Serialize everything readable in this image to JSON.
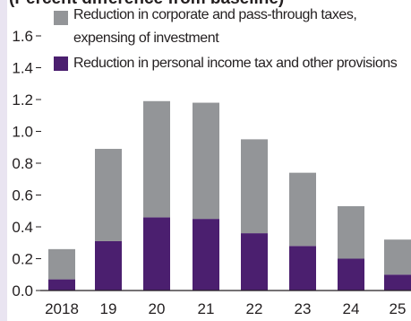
{
  "chart_data": {
    "type": "stacked_bar",
    "title": "(Percent difference from baseline)",
    "categories": [
      "2018",
      "19",
      "20",
      "21",
      "22",
      "23",
      "24",
      "25"
    ],
    "series": [
      {
        "name": "Reduction in personal income tax and other provisions",
        "color": "#4b1f6f",
        "values": [
          0.07,
          0.31,
          0.46,
          0.45,
          0.36,
          0.28,
          0.2,
          0.1
        ]
      },
      {
        "name": "Reduction in corporate and pass-through taxes, expensing of investment",
        "color": "#939598",
        "values": [
          0.19,
          0.58,
          0.73,
          0.73,
          0.59,
          0.46,
          0.33,
          0.22
        ]
      }
    ],
    "ylim": [
      0,
      1.6
    ],
    "yticks": [
      {
        "value": 0,
        "label": "0.0"
      },
      0.2,
      0.4,
      0.6,
      0.8,
      {
        "value": 1,
        "label": "1.0"
      },
      1.2,
      1.4,
      1.6
    ],
    "legend": "top-left"
  }
}
